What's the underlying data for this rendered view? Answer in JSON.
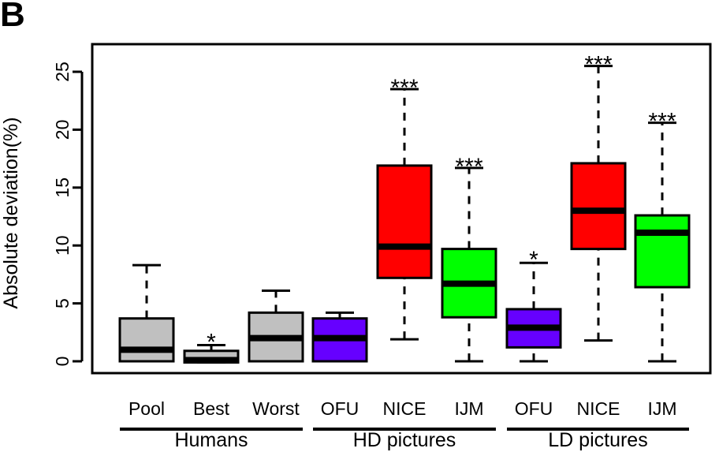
{
  "panel_label": "B",
  "chart_data": {
    "type": "box",
    "ylabel": "Absolute deviation(%)",
    "ylim": [
      -1.2,
      27.5
    ],
    "yticks": [
      0,
      5,
      10,
      15,
      20,
      25
    ],
    "categories": [
      "Pool",
      "Best",
      "Worst",
      "OFU",
      "NICE",
      "IJM",
      "OFU",
      "NICE",
      "IJM"
    ],
    "groups": [
      {
        "label": "Humans",
        "members": [
          0,
          1,
          2
        ]
      },
      {
        "label": "HD pictures",
        "members": [
          3,
          4,
          5
        ]
      },
      {
        "label": "LD pictures",
        "members": [
          6,
          7,
          8
        ]
      }
    ],
    "boxes": [
      {
        "category": "Pool",
        "min": 0,
        "q1": 0,
        "median": 1.0,
        "q3": 3.7,
        "max": 8.3,
        "color": "#c0c0c0",
        "sig": ""
      },
      {
        "category": "Best",
        "min": -0.1,
        "q1": -0.1,
        "median": 0.1,
        "q3": 0.9,
        "max": 1.4,
        "color": "#c0c0c0",
        "sig": "*"
      },
      {
        "category": "Worst",
        "min": 0,
        "q1": 0,
        "median": 2.0,
        "q3": 4.2,
        "max": 6.1,
        "color": "#c0c0c0",
        "sig": ""
      },
      {
        "category": "OFU",
        "min": 0,
        "q1": 0,
        "median": 2.0,
        "q3": 3.7,
        "max": 4.2,
        "color": "#6600ff",
        "sig": ""
      },
      {
        "category": "NICE",
        "min": 1.9,
        "q1": 7.2,
        "median": 9.9,
        "q3": 16.9,
        "max": 23.5,
        "color": "#ff0000",
        "sig": "***"
      },
      {
        "category": "IJM",
        "min": 0,
        "q1": 3.8,
        "median": 6.7,
        "q3": 9.7,
        "max": 16.7,
        "color": "#00ff00",
        "sig": "***"
      },
      {
        "category": "OFU",
        "min": 0,
        "q1": 1.2,
        "median": 2.9,
        "q3": 4.5,
        "max": 8.5,
        "color": "#6600ff",
        "sig": "*"
      },
      {
        "category": "NICE",
        "min": 1.8,
        "q1": 9.7,
        "median": 13.0,
        "q3": 17.1,
        "max": 25.5,
        "color": "#ff0000",
        "sig": "***"
      },
      {
        "category": "IJM",
        "min": 0,
        "q1": 6.4,
        "median": 11.1,
        "q3": 12.6,
        "max": 20.6,
        "color": "#00ff00",
        "sig": "***"
      }
    ]
  }
}
